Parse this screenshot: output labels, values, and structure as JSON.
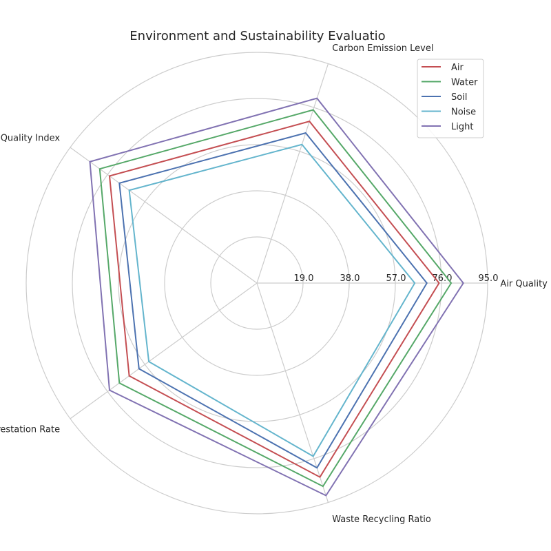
{
  "chart_data": {
    "type": "radar",
    "title": "Environment and Sustainability Evaluatio",
    "axes": [
      "Air Quality Index",
      "Carbon Emission Level",
      "Water Quality Index",
      "Deforestation Rate",
      "Waste Recycling Ratio"
    ],
    "radial_ticks": [
      19.0,
      38.0,
      57.0,
      76.0,
      95.0
    ],
    "radial_tick_labels": [
      "19.0",
      "38.0",
      "57.0",
      "76.0",
      "95.0"
    ],
    "rlim": [
      0,
      95
    ],
    "grid": true,
    "legend_position": "top-right",
    "series": [
      {
        "name": "Air",
        "color": "#c44e52",
        "values": [
          75,
          70,
          75,
          65,
          84
        ]
      },
      {
        "name": "Water",
        "color": "#55a868",
        "values": [
          80,
          75,
          80,
          70,
          88
        ]
      },
      {
        "name": "Soil",
        "color": "#4c72b0",
        "values": [
          70,
          65,
          70,
          60,
          80
        ]
      },
      {
        "name": "Noise",
        "color": "#64b5cd",
        "values": [
          65,
          60,
          65,
          55,
          75
        ]
      },
      {
        "name": "Light",
        "color": "#8172b2",
        "values": [
          85,
          80,
          85,
          75,
          92
        ]
      }
    ]
  }
}
